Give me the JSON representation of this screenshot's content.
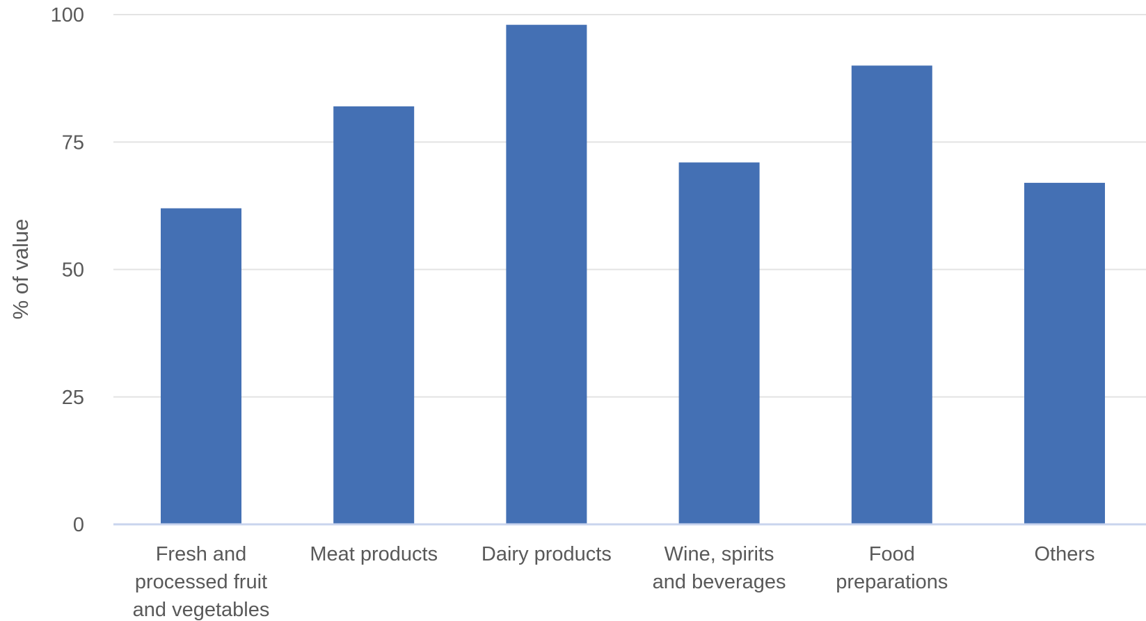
{
  "chart_data": {
    "type": "bar",
    "title": "",
    "xlabel": "",
    "ylabel": "% of value",
    "ylim": [
      0,
      100
    ],
    "yticks": [
      0,
      25,
      50,
      75,
      100
    ],
    "grid": true,
    "legend": "none",
    "bar_color": "#4470B4",
    "grid_color": "#E3E3E3",
    "axis_color": "#C9D4EE",
    "categories": [
      [
        "Fresh and",
        "processed fruit",
        "and vegetables"
      ],
      [
        "Meat products"
      ],
      [
        "Dairy products"
      ],
      [
        "Wine, spirits",
        "and beverages"
      ],
      [
        "Food",
        "preparations"
      ],
      [
        "Others"
      ]
    ],
    "values": [
      62,
      82,
      98,
      71,
      90,
      67
    ]
  }
}
